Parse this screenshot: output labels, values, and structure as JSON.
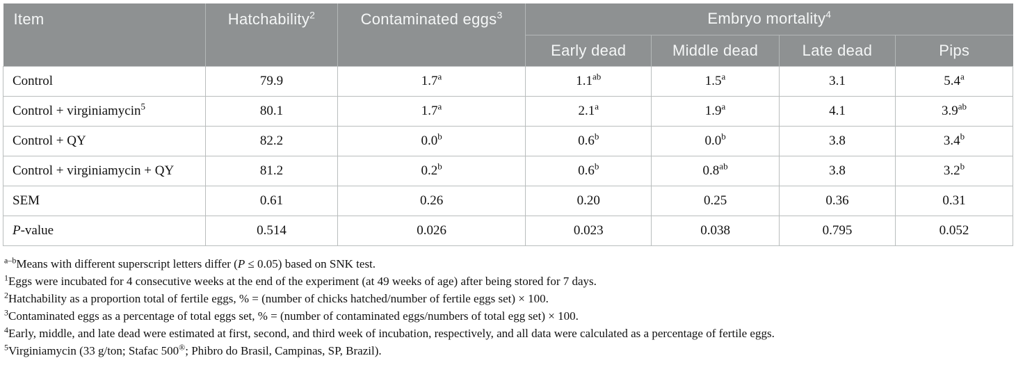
{
  "colors": {
    "header_bg": "#8e9192",
    "header_text": "#f5f7f7",
    "header_divider": "#b4b8b8",
    "cell_border": "#b9bdbd",
    "body_text": "#111111"
  },
  "table": {
    "header": {
      "item": "Item",
      "hatchability": {
        "label": "Hatchability",
        "sup": "2"
      },
      "contaminated_eggs": {
        "label": "Contaminated eggs",
        "sup": "3"
      },
      "embryo_mortality": {
        "label": "Embryo mortality",
        "sup": "4"
      },
      "sub": [
        "Early dead",
        "Middle dead",
        "Late dead",
        "Pips"
      ]
    },
    "rows": [
      {
        "item": "Control",
        "values": [
          {
            "v": "79.9"
          },
          {
            "v": "1.7",
            "s": "a"
          },
          {
            "v": "1.1",
            "s": "ab"
          },
          {
            "v": "1.5",
            "s": "a"
          },
          {
            "v": "3.1"
          },
          {
            "v": "5.4",
            "s": "a"
          }
        ]
      },
      {
        "item": "Control + virginiamycin",
        "item_sup": "5",
        "values": [
          {
            "v": "80.1"
          },
          {
            "v": "1.7",
            "s": "a"
          },
          {
            "v": "2.1",
            "s": "a"
          },
          {
            "v": "1.9",
            "s": "a"
          },
          {
            "v": "4.1"
          },
          {
            "v": "3.9",
            "s": "ab"
          }
        ]
      },
      {
        "item": "Control + QY",
        "values": [
          {
            "v": "82.2"
          },
          {
            "v": "0.0",
            "s": "b"
          },
          {
            "v": "0.6",
            "s": "b"
          },
          {
            "v": "0.0",
            "s": "b"
          },
          {
            "v": "3.8"
          },
          {
            "v": "3.4",
            "s": "b"
          }
        ]
      },
      {
        "item": "Control + virginiamycin + QY",
        "values": [
          {
            "v": "81.2"
          },
          {
            "v": "0.2",
            "s": "b"
          },
          {
            "v": "0.6",
            "s": "b"
          },
          {
            "v": "0.8",
            "s": "ab"
          },
          {
            "v": "3.8"
          },
          {
            "v": "3.2",
            "s": "b"
          }
        ]
      },
      {
        "item": "SEM",
        "values": [
          {
            "v": "0.61"
          },
          {
            "v": "0.26"
          },
          {
            "v": "0.20"
          },
          {
            "v": "0.25"
          },
          {
            "v": "0.36"
          },
          {
            "v": "0.31"
          }
        ]
      },
      {
        "item": "P-value",
        "item_italic_first": true,
        "values": [
          {
            "v": "0.514"
          },
          {
            "v": "0.026"
          },
          {
            "v": "0.023"
          },
          {
            "v": "0.038"
          },
          {
            "v": "0.795"
          },
          {
            "v": "0.052"
          }
        ]
      }
    ]
  },
  "footnotes": [
    [
      {
        "sup": "a–b"
      },
      {
        "t": "Means with different superscript letters differ ("
      },
      {
        "i": "P"
      },
      {
        "t": " ≤ 0.05) based on SNK test."
      }
    ],
    [
      {
        "sup": "1"
      },
      {
        "t": "Eggs were incubated for 4 consecutive weeks at the end of the experiment (at 49 weeks of age) after being stored for 7 days."
      }
    ],
    [
      {
        "sup": "2"
      },
      {
        "t": "Hatchability as a proportion total of fertile eggs, % = (number of chicks hatched/number of fertile eggs set) × 100."
      }
    ],
    [
      {
        "sup": "3"
      },
      {
        "t": "Contaminated eggs as a percentage of total eggs set, % = (number of contaminated eggs/numbers of total egg set) × 100."
      }
    ],
    [
      {
        "sup": "4"
      },
      {
        "t": "Early, middle, and late dead were estimated at first, second, and third week of incubation, respectively, and all data were calculated as a percentage of fertile eggs."
      }
    ],
    [
      {
        "sup": "5"
      },
      {
        "t": "Virginiamycin (33 g/ton; Stafac 500"
      },
      {
        "sup": "®"
      },
      {
        "t": "; Phibro do Brasil, Campinas, SP, Brazil)."
      }
    ]
  ]
}
